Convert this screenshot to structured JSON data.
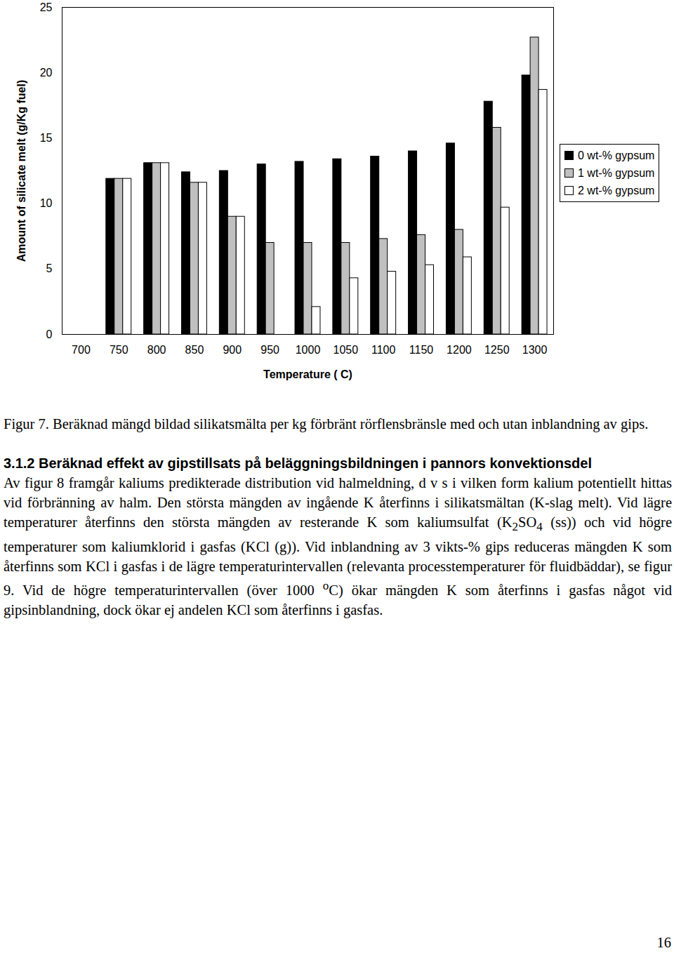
{
  "chart_data": {
    "type": "bar",
    "x_label": "Temperature ( C)",
    "y_label": "Amount of silicate melt (g/Kg fuel)",
    "categories": [
      "700",
      "750",
      "800",
      "850",
      "900",
      "950",
      "1000",
      "1050",
      "1100",
      "1150",
      "1200",
      "1250",
      "1300"
    ],
    "series": [
      {
        "name": "0 wt-% gypsum",
        "color": "#000000",
        "values": [
          null,
          11.9,
          13.1,
          12.4,
          12.5,
          13.0,
          13.2,
          13.4,
          13.6,
          14.0,
          14.6,
          17.8,
          19.8
        ]
      },
      {
        "name": "1 wt-% gypsum",
        "color": "#c0c0c0",
        "values": [
          null,
          11.9,
          13.1,
          11.6,
          9.0,
          7.0,
          7.0,
          7.0,
          7.3,
          7.6,
          8.0,
          15.8,
          22.7
        ]
      },
      {
        "name": "2 wt-% gypsum",
        "color": "#ffffff",
        "values": [
          null,
          11.9,
          13.1,
          11.6,
          9.0,
          0,
          2.1,
          4.3,
          4.8,
          5.3,
          5.9,
          9.7,
          18.7
        ]
      }
    ],
    "ylim": [
      0,
      25
    ],
    "yticks": [
      0,
      5,
      10,
      15,
      20,
      25
    ],
    "grid": false,
    "legend": "right"
  },
  "document": {
    "caption": "Figur 7. Beräknad mängd bildad silikatsmälta per kg förbränt rörflensbränsle med och utan inblandning av gips.",
    "heading": "3.1.2 Beräknad effekt av gipstillsats på beläggningsbildningen i pannors konvektionsdel",
    "paragraph": [
      {
        "text": "Av figur 8 framgår kaliums predikterade distribution vid halmeldning, d v s i vilken form kalium potentiellt hittas vid förbränning av halm. Den största mängden av ingående K återfinns i silikatsmältan (K-slag melt). Vid lägre temperaturer återfinns den största mängden av resterande K som kaliumsulfat (K"
      },
      {
        "sub": "2"
      },
      {
        "text": "SO"
      },
      {
        "sub": "4"
      },
      {
        "text": " (ss)) och vid högre temperaturer som kaliumklorid i gasfas (KCl (g)). Vid inblandning av 3 vikts-% gips reduceras mängden K som återfinns som KCl i gasfas i de lägre temperaturintervallen (relevanta processtemperaturer för fluidbäddar), se figur 9. Vid de högre temperaturintervallen (över 1000 "
      },
      {
        "sup": "o"
      },
      {
        "text": "C) ökar mängden K som återfinns i gasfas något vid gipsinblandning, dock ökar ej andelen KCl som återfinns i gasfas."
      }
    ],
    "page_number": "16"
  }
}
